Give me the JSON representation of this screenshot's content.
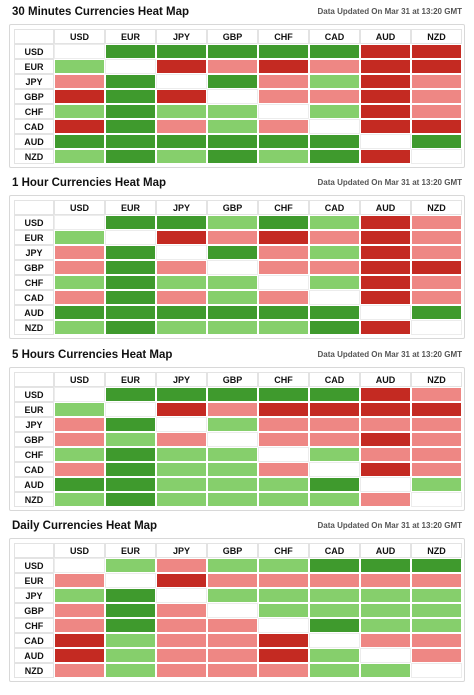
{
  "legend_colors": {
    "2": "#3f9a2d",
    "1": "#86cf6c",
    "0": "#ffffff",
    "-1": "#ee8784",
    "-2": "#c42a22"
  },
  "chart_data": [
    {
      "type": "heatmap",
      "title": "30 Minutes Currencies Heat Map",
      "subtitle": "Data Updated On Mar 31 at 13:20 GMT",
      "x": [
        "USD",
        "EUR",
        "JPY",
        "GBP",
        "CHF",
        "CAD",
        "AUD",
        "NZD"
      ],
      "y": [
        "USD",
        "EUR",
        "JPY",
        "GBP",
        "CHF",
        "CAD",
        "AUD",
        "NZD"
      ],
      "values": [
        [
          0,
          2,
          2,
          2,
          2,
          2,
          -2,
          -2
        ],
        [
          1,
          0,
          -2,
          -1,
          -2,
          -1,
          -2,
          -2
        ],
        [
          -1,
          2,
          0,
          2,
          -1,
          1,
          -2,
          -1
        ],
        [
          -2,
          2,
          -2,
          0,
          -1,
          -1,
          -2,
          -1
        ],
        [
          1,
          2,
          1,
          1,
          0,
          1,
          -2,
          -1
        ],
        [
          -2,
          2,
          -1,
          1,
          -1,
          0,
          -2,
          -2
        ],
        [
          2,
          2,
          2,
          2,
          2,
          2,
          0,
          2
        ],
        [
          1,
          2,
          1,
          2,
          1,
          2,
          -2,
          0
        ]
      ]
    },
    {
      "type": "heatmap",
      "title": "1 Hour Currencies Heat Map",
      "subtitle": "Data Updated On Mar 31 at 13:20 GMT",
      "x": [
        "USD",
        "EUR",
        "JPY",
        "GBP",
        "CHF",
        "CAD",
        "AUD",
        "NZD"
      ],
      "y": [
        "USD",
        "EUR",
        "JPY",
        "GBP",
        "CHF",
        "CAD",
        "AUD",
        "NZD"
      ],
      "values": [
        [
          0,
          2,
          2,
          1,
          2,
          1,
          -2,
          -1
        ],
        [
          1,
          0,
          -2,
          -1,
          -2,
          -1,
          -2,
          -1
        ],
        [
          -1,
          2,
          0,
          2,
          -1,
          1,
          -2,
          -1
        ],
        [
          -1,
          2,
          -1,
          0,
          -1,
          -1,
          -2,
          -2
        ],
        [
          1,
          2,
          1,
          1,
          0,
          1,
          -2,
          -1
        ],
        [
          -1,
          2,
          -1,
          1,
          -1,
          0,
          -2,
          -1
        ],
        [
          2,
          2,
          2,
          2,
          2,
          2,
          0,
          2
        ],
        [
          1,
          2,
          1,
          1,
          1,
          2,
          -2,
          0
        ]
      ]
    },
    {
      "type": "heatmap",
      "title": "5 Hours Currencies Heat Map",
      "subtitle": "Data Updated On Mar 31 at 13:20 GMT",
      "x": [
        "USD",
        "EUR",
        "JPY",
        "GBP",
        "CHF",
        "CAD",
        "AUD",
        "NZD"
      ],
      "y": [
        "USD",
        "EUR",
        "JPY",
        "GBP",
        "CHF",
        "CAD",
        "AUD",
        "NZD"
      ],
      "values": [
        [
          0,
          2,
          2,
          2,
          2,
          2,
          -2,
          -1
        ],
        [
          1,
          0,
          -2,
          -1,
          -2,
          -2,
          -2,
          -2
        ],
        [
          -1,
          2,
          0,
          1,
          -1,
          -1,
          -1,
          -1
        ],
        [
          -1,
          1,
          -1,
          0,
          -1,
          -1,
          -2,
          -1
        ],
        [
          1,
          2,
          1,
          1,
          0,
          1,
          -1,
          -1
        ],
        [
          -1,
          2,
          1,
          1,
          -1,
          0,
          -2,
          -1
        ],
        [
          2,
          2,
          1,
          1,
          1,
          2,
          0,
          1
        ],
        [
          1,
          2,
          1,
          1,
          1,
          1,
          -1,
          0
        ]
      ]
    },
    {
      "type": "heatmap",
      "title": "Daily Currencies Heat Map",
      "subtitle": "Data Updated On Mar 31 at 13:20 GMT",
      "x": [
        "USD",
        "EUR",
        "JPY",
        "GBP",
        "CHF",
        "CAD",
        "AUD",
        "NZD"
      ],
      "y": [
        "USD",
        "EUR",
        "JPY",
        "GBP",
        "CHF",
        "CAD",
        "AUD",
        "NZD"
      ],
      "values": [
        [
          0,
          1,
          -1,
          1,
          1,
          2,
          2,
          2
        ],
        [
          -1,
          0,
          -2,
          -1,
          -1,
          -1,
          -1,
          -1
        ],
        [
          1,
          2,
          0,
          1,
          1,
          1,
          1,
          1
        ],
        [
          -1,
          2,
          -1,
          0,
          1,
          1,
          1,
          1
        ],
        [
          -1,
          2,
          -1,
          -1,
          0,
          2,
          1,
          1
        ],
        [
          -2,
          1,
          -1,
          -1,
          -2,
          0,
          -1,
          -1
        ],
        [
          -2,
          1,
          -1,
          -1,
          -2,
          1,
          0,
          -1
        ],
        [
          -1,
          1,
          -1,
          -1,
          -1,
          1,
          1,
          0
        ]
      ]
    }
  ]
}
